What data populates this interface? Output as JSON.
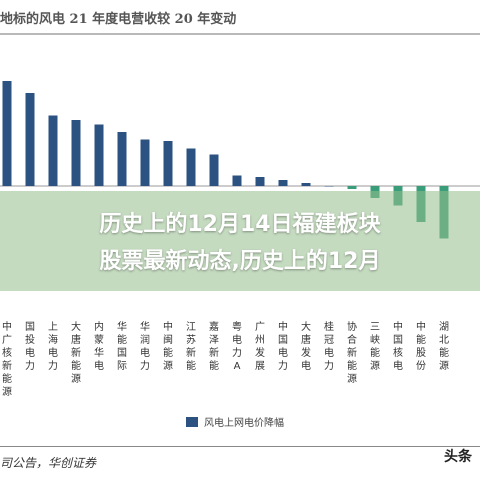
{
  "header": {
    "title": "地标的风电 21 年度电营收较 20 年变动"
  },
  "overlay": {
    "line1": "历史上的12月14日福建板块",
    "line2": "股票最新动态,历史上的12月"
  },
  "legend": {
    "label": "风电上网电价降幅",
    "color": "#2c5282"
  },
  "footer": {
    "source": "司公告，华创证券",
    "watermark": "头条"
  },
  "chart_data": {
    "type": "bar",
    "categories": [
      "中广核新能源",
      "国投电力",
      "上海电力",
      "大唐新能源",
      "内蒙华电",
      "华能国际",
      "华润电力",
      "中闽能源",
      "江苏新能",
      "嘉泽新能",
      "粤电力A",
      "广州发展",
      "中国电力",
      "大唐发电",
      "桂冠电力",
      "协合新能源",
      "三峡能源",
      "中国核电",
      "中能股份",
      "湖北能源"
    ],
    "series": [
      {
        "name": "风电上网电价降幅",
        "values": [
          0.7,
          0.62,
          0.47,
          0.44,
          0.41,
          0.36,
          0.31,
          0.3,
          0.25,
          0.21,
          0.07,
          0.06,
          0.04,
          0.02,
          0.0,
          -0.02,
          -0.08,
          -0.13,
          -0.24,
          -0.35
        ],
        "color": "#2c5282",
        "negative_color": "#3a9d7a"
      }
    ],
    "xlabel": "",
    "ylabel": "",
    "ylim": [
      -0.5,
      0.8
    ],
    "grid": false,
    "legend_position": "bottom"
  }
}
